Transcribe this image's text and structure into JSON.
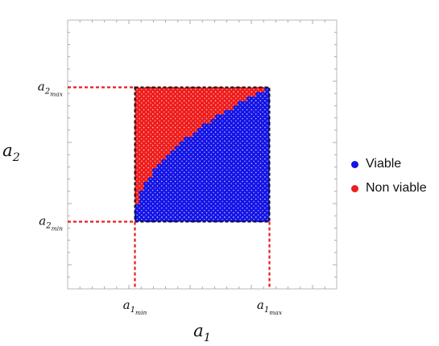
{
  "chart_data": {
    "type": "scatter",
    "title": "",
    "xlabel": {
      "base": "a",
      "sub": "1"
    },
    "ylabel": {
      "base": "a",
      "sub": "2"
    },
    "x_ticks": [
      {
        "base": "a",
        "sub": "1",
        "subsub": "min"
      },
      {
        "base": "a",
        "sub": "1",
        "subsub": "max"
      }
    ],
    "y_ticks": [
      {
        "base": "a",
        "sub": "2",
        "subsub": "max"
      },
      {
        "base": "a",
        "sub": "2",
        "subsub": "min"
      }
    ],
    "xlim": [
      -0.5,
      1.5
    ],
    "ylim": [
      -0.5,
      1.5
    ],
    "region": {
      "x": [
        0,
        1
      ],
      "y": [
        0,
        1
      ]
    },
    "boundary": "x >= y*y (viable above, non viable below)",
    "series": [
      {
        "name": "Viable",
        "color": "#1414e6"
      },
      {
        "name": "Non viable",
        "color": "#ee1c1c"
      }
    ],
    "grid": false,
    "legend_position": "right"
  }
}
